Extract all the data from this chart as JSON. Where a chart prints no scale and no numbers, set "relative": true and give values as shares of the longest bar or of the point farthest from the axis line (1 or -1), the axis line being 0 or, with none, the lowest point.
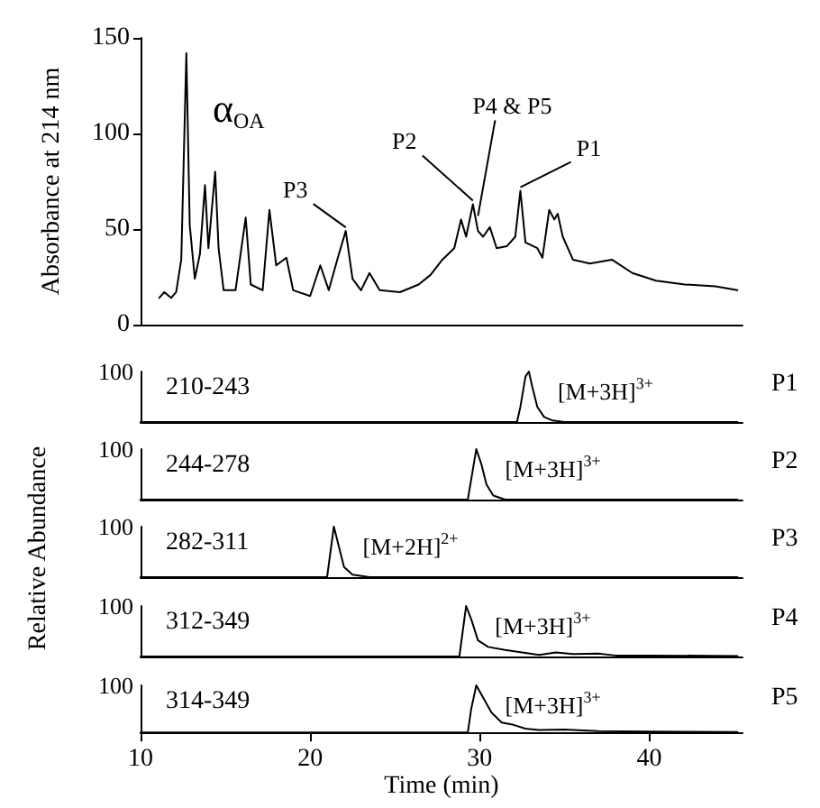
{
  "chart_data": [
    {
      "type": "line",
      "ylabel": "Absorbance at 214 nm",
      "tick_labels": "y",
      "xlim": [
        10,
        45.5
      ],
      "xticks": [
        10,
        20,
        30,
        40
      ],
      "ylim": [
        0,
        150
      ],
      "yticks": [
        0,
        50,
        100,
        150
      ],
      "color": "#000000",
      "marker": "none",
      "grid": false,
      "x": [
        11.1,
        11.4,
        11.8,
        12.1,
        12.4,
        12.7,
        12.9,
        13.2,
        13.5,
        13.8,
        14.0,
        14.4,
        14.6,
        14.9,
        15.6,
        16.2,
        16.5,
        17.2,
        17.6,
        18.0,
        18.6,
        19.0,
        20.0,
        20.6,
        21.1,
        21.6,
        22.1,
        22.5,
        23.0,
        23.5,
        24.1,
        25.3,
        26.4,
        27.1,
        27.8,
        28.5,
        28.9,
        29.2,
        29.6,
        29.9,
        30.2,
        30.6,
        31.0,
        31.6,
        32.1,
        32.4,
        32.7,
        33.4,
        33.7,
        34.1,
        34.4,
        34.6,
        34.9,
        35.5,
        36.5,
        37.8,
        39.0,
        40.4,
        42.1,
        43.9,
        45.2
      ],
      "values": [
        14,
        17,
        14,
        17,
        34,
        142,
        52,
        24,
        37,
        73,
        40,
        80,
        40,
        18,
        18,
        56,
        21,
        18,
        60,
        31,
        35,
        18,
        15,
        31,
        18,
        34,
        49,
        24,
        18,
        27,
        18,
        17,
        21,
        26,
        34,
        40,
        55,
        46,
        63,
        49,
        46,
        51,
        40,
        41,
        46,
        70,
        43,
        40,
        35,
        60,
        55,
        58,
        46,
        34,
        32,
        34,
        27,
        23,
        21,
        20,
        18
      ],
      "annotations": [
        "α$_{OA}$",
        {
          "text": "P3",
          "x": 22.1,
          "y": 49
        },
        {
          "text": "P2",
          "x": 29.6,
          "y": 63
        },
        {
          "text": "P4 & P5",
          "x": 29.9,
          "y": 55
        },
        {
          "text": "P1",
          "x": 32.4,
          "y": 70
        }
      ]
    },
    {
      "type": "line",
      "title": "210-243",
      "y2label": "P1",
      "tick_labels": false,
      "relative": true,
      "xlim": [
        10,
        45.5
      ],
      "xticks": [
        10,
        20,
        30,
        40
      ],
      "color": "#000000",
      "marker": "none",
      "grid": false,
      "x": [
        10,
        32.2,
        32.4,
        32.7,
        32.9,
        33.1,
        33.4,
        33.8,
        34.3,
        35,
        45.2
      ],
      "values": [
        0,
        0,
        0.3,
        0.9,
        1,
        0.7,
        0.3,
        0.1,
        0.03,
        0,
        0
      ],
      "annotations": [
        "100",
        "[M+3H]$^{3+}$"
      ]
    },
    {
      "type": "line",
      "title": "244-278",
      "y2label": "P2",
      "tick_labels": false,
      "relative": true,
      "xlim": [
        10,
        45.5
      ],
      "xticks": [
        10,
        20,
        30,
        40
      ],
      "color": "#000000",
      "marker": "none",
      "grid": false,
      "x": [
        10,
        29.3,
        29.5,
        29.8,
        30.1,
        30.4,
        30.8,
        31.5,
        45.2
      ],
      "values": [
        0,
        0,
        0.4,
        1,
        0.7,
        0.3,
        0.08,
        0,
        0
      ],
      "annotations": [
        "100",
        "[M+3H]$^{3+}$"
      ]
    },
    {
      "type": "line",
      "title": "282-311",
      "ylabel": "Relative Abundance",
      "y2label": "P3",
      "tick_labels": false,
      "relative": true,
      "xlim": [
        10,
        45.5
      ],
      "xticks": [
        10,
        20,
        30,
        40
      ],
      "color": "#000000",
      "marker": "none",
      "grid": false,
      "x": [
        10,
        21.0,
        21.2,
        21.4,
        21.7,
        22.0,
        22.5,
        23.5,
        45.2
      ],
      "values": [
        0,
        0,
        0.5,
        1,
        0.6,
        0.2,
        0.05,
        0,
        0
      ],
      "annotations": [
        "100",
        "[M+2H]$^{2+}$"
      ]
    },
    {
      "type": "line",
      "title": "312-349",
      "y2label": "P4",
      "tick_labels": false,
      "relative": true,
      "xlim": [
        10,
        45.5
      ],
      "xticks": [
        10,
        20,
        30,
        40
      ],
      "color": "#000000",
      "marker": "none",
      "grid": false,
      "x": [
        10,
        28.8,
        29.0,
        29.2,
        29.5,
        29.9,
        30.5,
        31.5,
        32.5,
        33.5,
        34.5,
        35.5,
        37,
        38,
        40,
        45.2
      ],
      "values": [
        0,
        0,
        0.5,
        1,
        0.74,
        0.32,
        0.19,
        0.13,
        0.08,
        0.03,
        0.08,
        0.05,
        0.06,
        0.02,
        0.02,
        0.01
      ],
      "annotations": [
        "100",
        "[M+3H]$^{3+}$"
      ]
    },
    {
      "type": "line",
      "title": "314-349",
      "xlabel": "Time (min)",
      "y2label": "P5",
      "tick_labels": "x",
      "relative": true,
      "xlim": [
        10,
        45.5
      ],
      "xticks": [
        10,
        20,
        30,
        40
      ],
      "color": "#000000",
      "marker": "none",
      "grid": false,
      "x": [
        10,
        29.3,
        29.5,
        29.8,
        30.2,
        30.7,
        31.3,
        32,
        32.7,
        33.5,
        35,
        37,
        40,
        45.2
      ],
      "values": [
        0,
        0,
        0.5,
        1,
        0.74,
        0.42,
        0.21,
        0.16,
        0.08,
        0.05,
        0.06,
        0.03,
        0.02,
        0.01
      ],
      "annotations": [
        "100",
        "[M+3H]$^{3+}$"
      ]
    }
  ]
}
